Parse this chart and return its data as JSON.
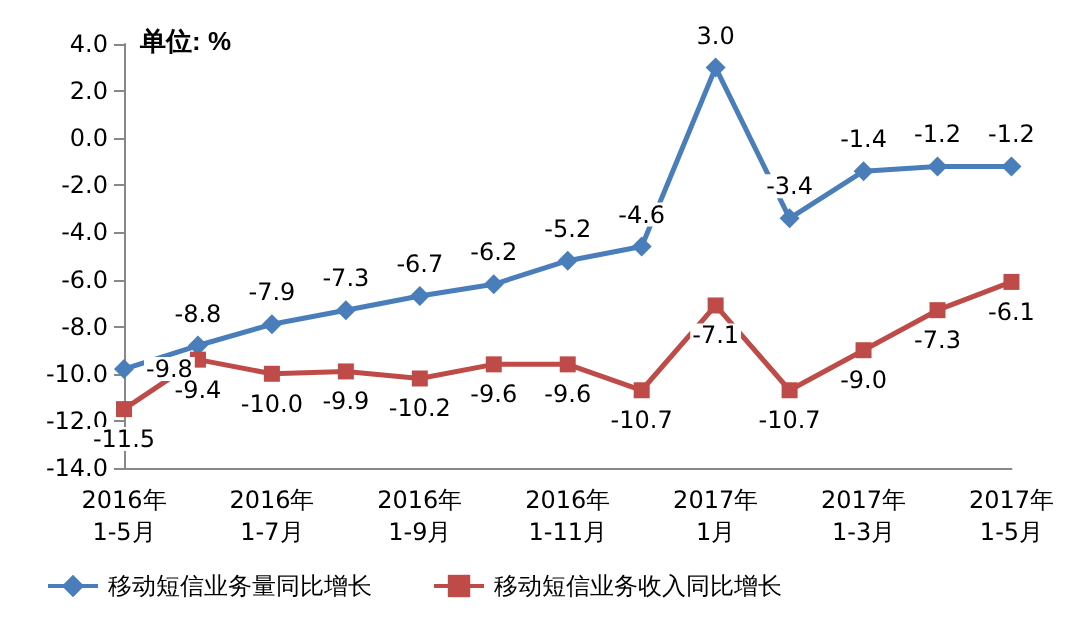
{
  "chart_data": {
    "type": "line",
    "annotations": [
      "单位: %"
    ],
    "categories": [
      "2016年\n1-5月",
      null,
      "2016年\n1-7月",
      null,
      "2016年\n1-9月",
      null,
      "2016年\n1-11月",
      null,
      "2017年\n1月",
      null,
      "2017年\n1-3月",
      null,
      "2017年\n1-5月"
    ],
    "series": [
      {
        "name": "移动短信业务量同比增长",
        "color": "#4a7ebb",
        "marker": "diamond",
        "values": [
          -9.8,
          -8.8,
          -7.9,
          -7.3,
          -6.7,
          -6.2,
          -5.2,
          -4.6,
          3.0,
          -3.4,
          -1.4,
          -1.2,
          -1.2
        ],
        "value_labels": [
          "-9.8",
          "-8.8",
          "-7.9",
          "-7.3",
          "-6.7",
          "-6.2",
          "-5.2",
          "-4.6",
          "3.0",
          "-3.4",
          "-1.4",
          "-1.2",
          "-1.2"
        ]
      },
      {
        "name": "移动短信业务收入同比增长",
        "color": "#be4b48",
        "marker": "square",
        "values": [
          -11.5,
          -9.4,
          -10.0,
          -9.9,
          -10.2,
          -9.6,
          -9.6,
          -10.7,
          -7.1,
          -10.7,
          -9.0,
          -7.3,
          -6.1
        ],
        "value_labels": [
          "-11.5",
          "-9.4",
          "-10.0",
          "-9.9",
          "-10.2",
          "-9.6",
          "-9.6",
          "-10.7",
          "-7.1",
          "-10.7",
          "-9.0",
          "-7.3",
          "-6.1"
        ]
      }
    ],
    "ylim": [
      -14,
      4
    ],
    "yticks": [
      {
        "value": -14,
        "label": "-14.0"
      },
      {
        "value": -12,
        "label": "-12.0"
      },
      {
        "value": -10,
        "label": "-10.0"
      },
      {
        "value": -8,
        "label": "-8.0"
      },
      {
        "value": -6,
        "label": "-6.0"
      },
      {
        "value": -4,
        "label": "-4.0"
      },
      {
        "value": -2,
        "label": "-2.0"
      },
      {
        "value": 0,
        "label": "0.0"
      },
      {
        "value": 2,
        "label": "2.0"
      },
      {
        "value": 4,
        "label": "4.0"
      }
    ],
    "grid": false,
    "legend": "bottom"
  }
}
